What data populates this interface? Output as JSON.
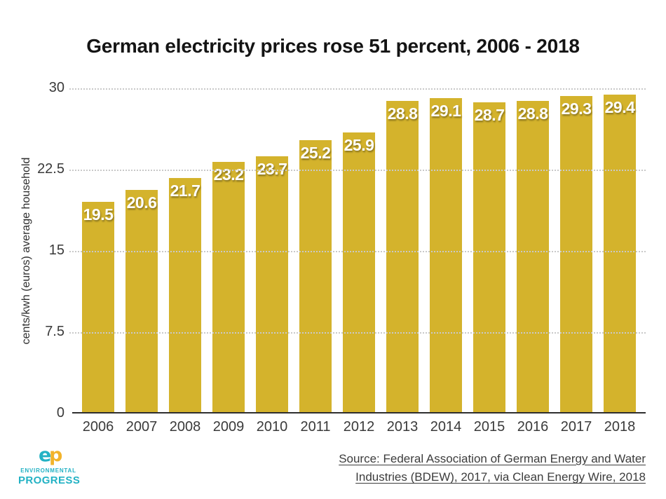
{
  "chart_data": {
    "type": "bar",
    "title": "German electricity prices rose 51 percent, 2006 - 2018",
    "categories": [
      "2006",
      "2007",
      "2008",
      "2009",
      "2010",
      "2011",
      "2012",
      "2013",
      "2014",
      "2015",
      "2016",
      "2017",
      "2018"
    ],
    "values": [
      19.5,
      20.6,
      21.7,
      23.2,
      23.7,
      25.2,
      25.9,
      28.8,
      29.1,
      28.7,
      28.8,
      29.3,
      29.4
    ],
    "xlabel": "",
    "ylabel": "cents/kwh (euros) average household",
    "ylim": [
      0,
      30
    ],
    "yticks": [
      0,
      7.5,
      15,
      22.5,
      30
    ],
    "grid": "horizontal-dotted",
    "legend": "none",
    "bar_color": "#d4b32c",
    "value_label_color": "#ffffff"
  },
  "footer": {
    "source_line1": "Source: Federal Association of German Energy and Water",
    "source_line2": "Industries (BDEW), 2017, via Clean Energy Wire, 2018",
    "logo": {
      "mark": "ep",
      "line1": "ENVIRONMENTAL",
      "line2": "PROGRESS",
      "teal": "#23b2c4",
      "yellow": "#f2b32b"
    }
  }
}
